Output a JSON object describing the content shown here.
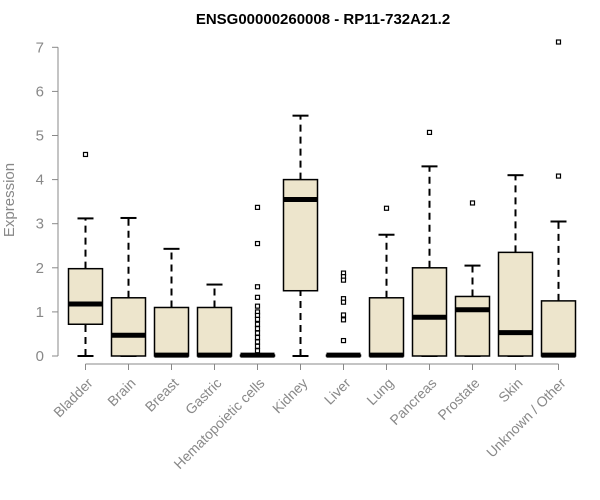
{
  "chart_data": {
    "type": "box",
    "title": "ENSG00000260008 - RP11-732A21.2",
    "ylabel": "Expression",
    "xlabel": "",
    "ylim": [
      0,
      7.2
    ],
    "yticks": [
      0,
      1,
      2,
      3,
      4,
      5,
      6,
      7
    ],
    "grid": false,
    "colors": {
      "box_fill": "#ede5cc",
      "outline": "#000000",
      "axis": "#888888"
    },
    "categories": [
      "Bladder",
      "Brain",
      "Breast",
      "Gastric",
      "Hematopoietic cells",
      "Kidney",
      "Liver",
      "Lung",
      "Pancreas",
      "Prostate",
      "Skin",
      "Unknown / Other"
    ],
    "boxes": [
      {
        "category": "Bladder",
        "whisker_low": 0,
        "q1": 0.72,
        "median": 1.18,
        "q3": 1.98,
        "whisker_high": 3.12,
        "outliers": [
          4.57
        ]
      },
      {
        "category": "Brain",
        "whisker_low": 0,
        "q1": 0,
        "median": 0.47,
        "q3": 1.32,
        "whisker_high": 3.13,
        "outliers": []
      },
      {
        "category": "Breast",
        "whisker_low": 0,
        "q1": 0,
        "median": 0.02,
        "q3": 1.1,
        "whisker_high": 2.43,
        "outliers": []
      },
      {
        "category": "Gastric",
        "whisker_low": 0,
        "q1": 0,
        "median": 0.02,
        "q3": 1.1,
        "whisker_high": 1.62,
        "outliers": []
      },
      {
        "category": "Hematopoietic cells",
        "whisker_low": 0,
        "q1": 0,
        "median": 0.02,
        "q3": 0.02,
        "whisker_high": 0.02,
        "outliers": [
          3.37,
          2.55,
          1.57,
          1.33,
          1.13,
          1.0,
          0.92,
          0.83,
          0.72,
          0.62,
          0.52,
          0.42,
          0.32,
          0.22,
          0.12
        ]
      },
      {
        "category": "Kidney",
        "whisker_low": 0,
        "q1": 1.48,
        "median": 3.55,
        "q3": 4.0,
        "whisker_high": 5.45,
        "outliers": []
      },
      {
        "category": "Liver",
        "whisker_low": 0,
        "q1": 0,
        "median": 0.02,
        "q3": 0.02,
        "whisker_high": 0.02,
        "outliers": [
          1.88,
          1.8,
          1.72,
          1.3,
          1.22,
          0.93,
          0.82,
          0.35
        ]
      },
      {
        "category": "Lung",
        "whisker_low": 0,
        "q1": 0,
        "median": 0.02,
        "q3": 1.32,
        "whisker_high": 2.75,
        "outliers": [
          3.35
        ]
      },
      {
        "category": "Pancreas",
        "whisker_low": 0,
        "q1": 0,
        "median": 0.88,
        "q3": 2.0,
        "whisker_high": 4.3,
        "outliers": [
          5.07
        ]
      },
      {
        "category": "Prostate",
        "whisker_low": 0,
        "q1": 0,
        "median": 1.05,
        "q3": 1.35,
        "whisker_high": 2.05,
        "outliers": [
          3.47
        ]
      },
      {
        "category": "Skin",
        "whisker_low": 0,
        "q1": 0,
        "median": 0.53,
        "q3": 2.35,
        "whisker_high": 4.1,
        "outliers": []
      },
      {
        "category": "Unknown / Other",
        "whisker_low": 0,
        "q1": 0,
        "median": 0.02,
        "q3": 1.25,
        "whisker_high": 3.05,
        "outliers": [
          7.12,
          4.08
        ]
      }
    ]
  }
}
